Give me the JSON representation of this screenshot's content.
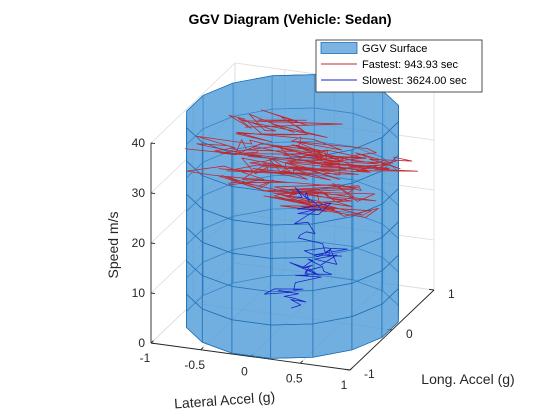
{
  "chart_data": {
    "type": "ggv-3d-surface",
    "title": "GGV Diagram (Vehicle: Sedan)",
    "xlabel": "Lateral Accel (g)",
    "ylabel": "Long. Accel (g)",
    "zlabel": "Speed m/s",
    "xlim": [
      -1,
      1
    ],
    "ylim": [
      -1,
      1
    ],
    "zlim": [
      0,
      40
    ],
    "x_ticks": [
      "-1",
      "-0.5",
      "0",
      "0.5",
      "1"
    ],
    "y_ticks": [
      "-1",
      "0",
      "1"
    ],
    "z_ticks": [
      "0",
      "10",
      "20",
      "30",
      "40"
    ],
    "grid": true,
    "legend_position": "top-right",
    "surface": {
      "name": "GGV Surface",
      "radius": 1.0,
      "z_range": [
        0,
        40
      ],
      "angular_facets": 16,
      "height_bands": 6,
      "face_color": "#4F9AD8",
      "edge_color": "#1F6FB4"
    },
    "series": [
      {
        "name": "Fastest: 943.93 sec",
        "color": "#C0282F",
        "description_points": [
          [
            0.1,
            0.1,
            38.5
          ],
          [
            -0.35,
            0.2,
            35.0
          ],
          [
            0.55,
            -0.05,
            33.0
          ],
          [
            -0.7,
            0.05,
            32.0
          ],
          [
            0.8,
            0.2,
            31.0
          ],
          [
            -0.2,
            -0.15,
            30.0
          ],
          [
            0.45,
            0.35,
            29.0
          ],
          [
            -0.55,
            -0.25,
            28.5
          ],
          [
            0.65,
            -0.1,
            27.0
          ],
          [
            0.25,
            0.0,
            24.0
          ],
          [
            0.3,
            0.1,
            21.0
          ]
        ]
      },
      {
        "name": "Slowest: 3624.00 sec",
        "color": "#1A22C8",
        "description_points": [
          [
            0.15,
            -0.1,
            26.0
          ],
          [
            0.25,
            0.05,
            22.0
          ],
          [
            0.2,
            0.0,
            14.0
          ],
          [
            0.35,
            0.2,
            12.0
          ],
          [
            0.1,
            -0.2,
            11.5
          ],
          [
            0.4,
            0.05,
            10.5
          ],
          [
            -0.05,
            -0.1,
            6.0
          ],
          [
            0.05,
            -0.15,
            3.0
          ]
        ]
      }
    ]
  }
}
